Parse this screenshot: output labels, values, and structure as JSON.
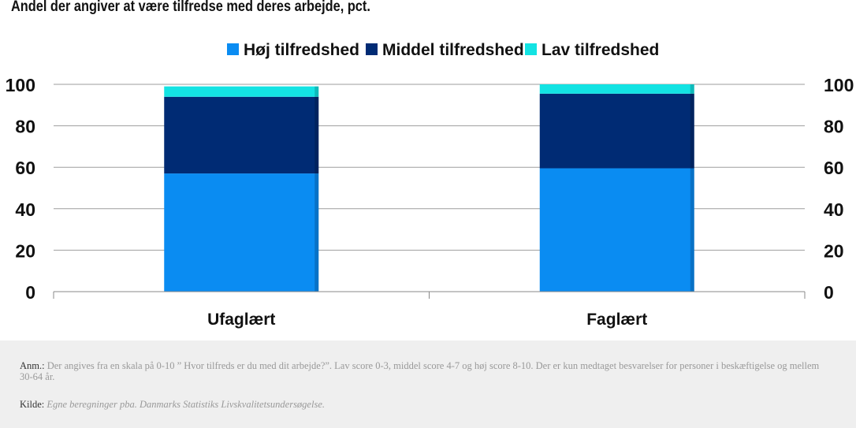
{
  "title": "Andel der angiver at være tilfredse med deres arbejde, pct.",
  "note_label": "Anm.:",
  "note_text": "Der angives fra en skala på 0-10 ” Hvor tilfreds er du med dit arbejde?”. Lav score 0-3, middel score 4-7 og høj score 8-10. Der er kun medtaget besvarelser for personer i beskæftigelse og mellem 30-64 år.",
  "source_label": "Kilde:",
  "source_text": "Egne beregninger pba. Danmarks Statistiks Livskvalitetsundersøgelse.",
  "chart_data": {
    "type": "bar",
    "stacked": true,
    "categories": [
      "Ufaglært",
      "Faglært"
    ],
    "series": [
      {
        "name": "Høj tilfredshed",
        "color": "#0a8cf2",
        "values": [
          57,
          59.5
        ]
      },
      {
        "name": "Middel tilfredshed",
        "color": "#002b74",
        "values": [
          37,
          36
        ]
      },
      {
        "name": "Lav tilfredshed",
        "color": "#13e3e3",
        "values": [
          5,
          4.5
        ]
      }
    ],
    "ylim": [
      0,
      100
    ],
    "yticks": [
      0,
      20,
      40,
      60,
      80,
      100
    ],
    "grid": true,
    "legend_position": "top"
  }
}
